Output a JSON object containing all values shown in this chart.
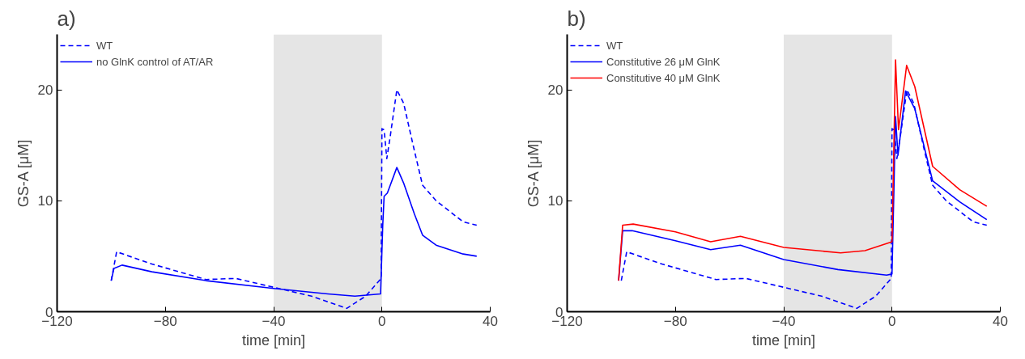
{
  "chart_data": [
    {
      "type": "line",
      "title": "a)",
      "xlabel": "time [min]",
      "ylabel": "GS-A [μM]",
      "xlim": [
        -120,
        40
      ],
      "xticks": [
        -120,
        -80,
        -40,
        0,
        40
      ],
      "ylim": [
        0,
        25
      ],
      "yticks": [
        0,
        10,
        20
      ],
      "grid": false,
      "legend": "top left",
      "bands": [
        {
          "axis": "x",
          "from": -40,
          "to": 0,
          "color": "#e5e5e5"
        }
      ],
      "series": [
        {
          "name": "WT",
          "color": "#0000ff",
          "line_style": "dashed",
          "x": [
            -100,
            -98,
            -85,
            -65,
            -54,
            -40,
            -26,
            -13,
            -6,
            -0.3,
            0,
            0.8,
            1.8,
            3,
            5.5,
            8,
            12,
            15,
            20,
            30,
            35
          ],
          "values": [
            2.8,
            5.4,
            4.3,
            2.9,
            3.0,
            2.2,
            1.4,
            0.3,
            1.4,
            3.0,
            16.5,
            16.4,
            13.8,
            15.7,
            20.0,
            18.8,
            14.5,
            11.4,
            10.0,
            8.1,
            7.8
          ]
        },
        {
          "name": "no GlnK control of AT/AR",
          "color": "#0000ff",
          "line_style": "solid",
          "x": [
            -100,
            -99,
            -96,
            -85,
            -65,
            -40,
            -20,
            -10,
            -0.5,
            0.3,
            0.8,
            2,
            5.5,
            8,
            12,
            15,
            20,
            30,
            35
          ],
          "values": [
            2.8,
            3.9,
            4.2,
            3.6,
            2.8,
            2.1,
            1.6,
            1.4,
            1.6,
            7.8,
            10.4,
            10.7,
            13.0,
            11.6,
            8.8,
            6.9,
            6.0,
            5.2,
            5.0
          ]
        }
      ]
    },
    {
      "type": "line",
      "title": "b)",
      "xlabel": "time [min]",
      "ylabel": "GS-A [μM]",
      "xlim": [
        -120,
        40
      ],
      "xticks": [
        -120,
        -80,
        -40,
        0,
        40
      ],
      "ylim": [
        0,
        25
      ],
      "yticks": [
        0,
        10,
        20
      ],
      "grid": false,
      "legend": "top left",
      "bands": [
        {
          "axis": "x",
          "from": -40,
          "to": 0,
          "color": "#e5e5e5"
        }
      ],
      "series": [
        {
          "name": "WT",
          "color": "#0000ff",
          "line_style": "dashed",
          "x": [
            -100,
            -98,
            -85,
            -65,
            -54,
            -40,
            -26,
            -13,
            -6,
            -0.3,
            0,
            0.8,
            1.8,
            3,
            5.5,
            8,
            12,
            15,
            20,
            30,
            35
          ],
          "values": [
            2.8,
            5.4,
            4.3,
            2.9,
            3.0,
            2.2,
            1.4,
            0.3,
            1.4,
            3.0,
            16.5,
            16.4,
            13.8,
            15.7,
            20.0,
            18.8,
            14.5,
            11.4,
            10.0,
            8.1,
            7.8
          ]
        },
        {
          "name": "Constitutive 26 μM GlnK",
          "color": "#0000ff",
          "line_style": "solid",
          "x": [
            -101,
            -99.5,
            -96,
            -80,
            -67,
            -56,
            -40,
            -20,
            -2,
            0,
            1.3,
            2.2,
            5,
            8.4,
            15,
            25,
            35
          ],
          "values": [
            2.8,
            7.3,
            7.3,
            6.4,
            5.6,
            6.0,
            4.7,
            3.8,
            3.3,
            3.4,
            17.6,
            14.1,
            19.9,
            18.3,
            11.8,
            9.9,
            8.3
          ]
        },
        {
          "name": "Constitutive 40 μM GlnK",
          "color": "#ff0000",
          "line_style": "solid",
          "x": [
            -101,
            -99.5,
            -95.6,
            -80,
            -67,
            -56,
            -40,
            -19,
            -10,
            0,
            1.3,
            2.4,
            5.4,
            8.4,
            15,
            25,
            35
          ],
          "values": [
            2.8,
            7.8,
            7.9,
            7.2,
            6.3,
            6.8,
            5.8,
            5.3,
            5.5,
            6.3,
            22.7,
            16.4,
            22.2,
            20.3,
            13.1,
            11.0,
            9.5
          ]
        }
      ]
    }
  ]
}
